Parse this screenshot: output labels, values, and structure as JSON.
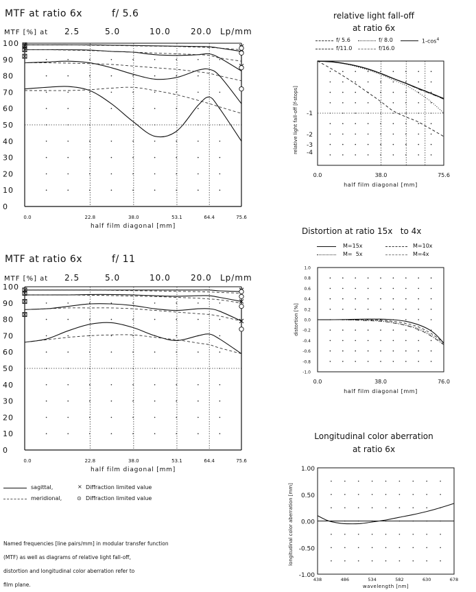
{
  "mtf1": {
    "title": "MTF at ratio 6x",
    "aperture": "f/ 5.6",
    "freq_label": "MTF [%] at",
    "freqs": [
      "2.5",
      "5.0",
      "10.0",
      "20.0"
    ],
    "freq_unit": "Lp/mm",
    "xlabel": "half film diagonal [mm]"
  },
  "mtf2": {
    "title": "MTF at ratio 6x",
    "aperture": "f/ 11",
    "freq_label": "MTF [%] at",
    "freqs": [
      "2.5",
      "5.0",
      "10.0",
      "20.0"
    ],
    "freq_unit": "Lp/mm",
    "xlabel": "half film diagonal [mm]"
  },
  "legend": {
    "sagittal": "sagittal,",
    "meridional": "meridional,",
    "diff_x": "Diffraction limited value",
    "diff_o": "Diffraction limited value"
  },
  "note": [
    "Named frequencies [line pairs/mm] in modular transfer function",
    "(MTF) as well as diagrams of relative light fall-off,",
    "distortion and longitudinal color aberration refer to",
    "film plane."
  ],
  "falloff": {
    "title_line1": "relative light fall-off",
    "title_line2": "at ratio 6x",
    "legend": [
      "f/ 5.6",
      "f/ 8.0",
      "1-cos",
      "f/11.0",
      "f/16.0"
    ],
    "cos_exp": "4",
    "ylabel": "relative light fall-off [f-stops]",
    "xlabel": "half film diagonal [mm]"
  },
  "distortion": {
    "title": "Distortion at ratio 15x   to 4x",
    "legend": [
      "M=15x",
      "M=10x",
      "M=  5x",
      "M=4x"
    ],
    "ylabel": "distortion [%]",
    "xlabel": "half film diagonal [mm]"
  },
  "lca": {
    "title_line1": "Longitudinal color aberration",
    "title_line2": "at ratio 6x",
    "ylabel": "longitudinal color aberration [mm]",
    "xlabel": "wavelength [nm]"
  },
  "chart_data": [
    {
      "type": "line",
      "title": "MTF at ratio 6x f/5.6",
      "xlabel": "half film diagonal [mm]",
      "ylabel": "MTF [%]",
      "x_ticks": [
        "0.0",
        "22.8",
        "38.0",
        "53.1",
        "64.4",
        "75.6"
      ],
      "x_tick_values": [
        0,
        22.8,
        38.0,
        53.1,
        64.4,
        75.6
      ],
      "y_ticks": [
        "0",
        "10",
        "20",
        "30",
        "40",
        "50",
        "60",
        "70",
        "80",
        "90",
        "100"
      ],
      "xlim": [
        0,
        75.6
      ],
      "ylim": [
        0,
        100
      ],
      "x": [
        0,
        7.6,
        15.1,
        22.7,
        30.2,
        37.8,
        45.4,
        52.9,
        60.5,
        64.4,
        68.0,
        75.6
      ],
      "series": [
        {
          "name": "2.5 Lp/mm sagittal",
          "style": "solid",
          "values": [
            99,
            99,
            99,
            99,
            98.8,
            98.6,
            98.4,
            98.2,
            98,
            97.8,
            97,
            95
          ]
        },
        {
          "name": "2.5 Lp/mm meridional",
          "style": "dashed",
          "values": [
            99,
            99,
            99,
            98.8,
            98.6,
            98.4,
            98.2,
            98,
            97.6,
            97.4,
            97,
            96
          ]
        },
        {
          "name": "5.0 Lp/mm sagittal",
          "style": "solid",
          "values": [
            96,
            96,
            96,
            95.8,
            95,
            94.5,
            93,
            92.5,
            93,
            93.5,
            91,
            83
          ]
        },
        {
          "name": "5.0 Lp/mm meridional",
          "style": "dashed",
          "values": [
            96,
            96,
            95.8,
            95.5,
            95,
            94.5,
            94,
            93.5,
            93,
            92.5,
            91,
            89
          ]
        },
        {
          "name": "10.0 Lp/mm sagittal",
          "style": "solid",
          "values": [
            88,
            88.5,
            89,
            88,
            85,
            81,
            78,
            79,
            83.5,
            84,
            80,
            63
          ]
        },
        {
          "name": "10.0 Lp/mm meridional",
          "style": "dashed",
          "values": [
            88,
            88,
            87.8,
            87.5,
            87,
            86,
            85,
            84,
            82.5,
            81.5,
            80,
            77
          ]
        },
        {
          "name": "20.0 Lp/mm sagittal",
          "style": "solid",
          "values": [
            72,
            73,
            73.5,
            71,
            63,
            52,
            43,
            46,
            62,
            67,
            60,
            40
          ]
        },
        {
          "name": "20.0 Lp/mm meridional",
          "style": "dashed",
          "values": [
            71,
            71,
            71,
            71.5,
            72.5,
            73,
            71,
            68.5,
            65,
            63,
            61,
            57
          ]
        }
      ],
      "diffraction_limited_center": [
        99,
        98,
        96,
        92
      ],
      "diffraction_limited_edge_x": [
        98,
        96,
        86
      ],
      "diffraction_limited_edge_o": [
        97,
        94,
        85,
        72
      ]
    },
    {
      "type": "line",
      "title": "MTF at ratio 6x f/11",
      "xlabel": "half film diagonal [mm]",
      "ylabel": "MTF [%]",
      "x_ticks": [
        "0.0",
        "22.8",
        "38.0",
        "53.1",
        "64.4",
        "75.6"
      ],
      "x_tick_values": [
        0,
        22.8,
        38.0,
        53.1,
        64.4,
        75.6
      ],
      "y_ticks": [
        "0",
        "10",
        "20",
        "30",
        "40",
        "50",
        "60",
        "70",
        "80",
        "90",
        "100"
      ],
      "xlim": [
        0,
        75.6
      ],
      "ylim": [
        0,
        100
      ],
      "x": [
        0,
        7.6,
        15.1,
        22.7,
        30.2,
        37.8,
        45.4,
        52.9,
        60.5,
        64.4,
        68.0,
        75.6
      ],
      "series": [
        {
          "name": "2.5 Lp/mm sagittal",
          "style": "solid",
          "values": [
            98,
            98,
            98,
            98,
            98,
            98,
            98,
            98,
            98,
            98,
            97.5,
            97
          ]
        },
        {
          "name": "2.5 Lp/mm meridional",
          "style": "dashed",
          "values": [
            98,
            98,
            98,
            98,
            97.8,
            97.6,
            97.4,
            97.2,
            97,
            96.8,
            96.5,
            96
          ]
        },
        {
          "name": "5.0 Lp/mm sagittal",
          "style": "solid",
          "values": [
            95,
            95,
            95,
            95.2,
            95.2,
            95,
            94.5,
            94.2,
            94.5,
            94.5,
            93.5,
            91
          ]
        },
        {
          "name": "5.0 Lp/mm meridional",
          "style": "dashed",
          "values": [
            95,
            95,
            95,
            94.8,
            94.6,
            94.3,
            94,
            93.5,
            93,
            92.5,
            92,
            90
          ]
        },
        {
          "name": "10.0 Lp/mm sagittal",
          "style": "solid",
          "values": [
            86,
            86.5,
            88,
            89.5,
            89.5,
            88.5,
            86.5,
            85.5,
            86.5,
            86.5,
            85,
            79
          ]
        },
        {
          "name": "10.0 Lp/mm meridional",
          "style": "dashed",
          "values": [
            86,
            86.5,
            87,
            87,
            87,
            86.5,
            85.5,
            84.5,
            83.5,
            83,
            82,
            79
          ]
        },
        {
          "name": "20.0 Lp/mm sagittal",
          "style": "solid",
          "values": [
            66,
            68,
            73,
            77,
            78,
            75,
            70,
            67,
            70,
            71,
            68,
            59
          ]
        },
        {
          "name": "20.0 Lp/mm meridional",
          "style": "dashed",
          "values": [
            66,
            67.5,
            69,
            70,
            70.5,
            70.5,
            69,
            67.5,
            65.5,
            64.5,
            62.5,
            59
          ]
        }
      ],
      "diffraction_limited_center": [
        98,
        96,
        91,
        83
      ],
      "diffraction_limited_edge_x": [
        98,
        91,
        79
      ],
      "diffraction_limited_edge_o": [
        97,
        94,
        88,
        74
      ]
    },
    {
      "type": "line",
      "title": "relative light fall-off at ratio 6x",
      "xlabel": "half film diagonal [mm]",
      "ylabel": "relative light fall-off [f-stops]",
      "x_ticks": [
        "0.0",
        "38.0",
        "75.6"
      ],
      "x_tick_values": [
        0,
        38.0,
        75.6
      ],
      "y_ticks": [
        "-1",
        "-2",
        "-3",
        "-4"
      ],
      "y_tick_values": [
        -1,
        -2,
        -3,
        -4
      ],
      "xlim": [
        0,
        75.6
      ],
      "x": [
        0,
        10,
        20,
        30,
        38,
        45,
        53.1,
        60,
        68,
        75.6
      ],
      "series": [
        {
          "name": "f/ 5.6",
          "style": "dashed",
          "values": [
            0,
            -0.18,
            -0.38,
            -0.6,
            -0.78,
            -0.95,
            -1.18,
            -1.4,
            -1.75,
            -2.2
          ]
        },
        {
          "name": "f/ 8.0",
          "style": "dotted",
          "values": [
            0,
            -0.02,
            -0.08,
            -0.17,
            -0.26,
            -0.36,
            -0.47,
            -0.6,
            -0.78,
            -1.0
          ]
        },
        {
          "name": "1-cos4",
          "style": "solid",
          "values": [
            0,
            -0.02,
            -0.07,
            -0.15,
            -0.24,
            -0.33,
            -0.43,
            -0.52,
            -0.62,
            -0.72
          ]
        },
        {
          "name": "f/11.0",
          "style": "dashdot",
          "values": [
            0,
            -0.02,
            -0.07,
            -0.15,
            -0.24,
            -0.33,
            -0.43,
            -0.53,
            -0.63,
            -0.73
          ]
        },
        {
          "name": "f/16.0",
          "style": "dashdot2",
          "values": [
            0,
            -0.02,
            -0.07,
            -0.15,
            -0.24,
            -0.33,
            -0.43,
            -0.52,
            -0.62,
            -0.72
          ]
        }
      ]
    },
    {
      "type": "line",
      "title": "Distortion at ratio 15x to 4x",
      "xlabel": "half film diagonal [mm]",
      "ylabel": "distortion [%]",
      "x_ticks": [
        "0.0",
        "38.0",
        "76.0"
      ],
      "x_tick_values": [
        0,
        38.0,
        76.0
      ],
      "y_ticks": [
        "1.0",
        "0.8",
        "0.6",
        "0.4",
        "0.2",
        "0.0",
        "-0.2",
        "-0.4",
        "-0.6",
        "-0.8",
        "-1.0"
      ],
      "xlim": [
        0,
        76
      ],
      "ylim": [
        -1,
        1
      ],
      "x": [
        0,
        10,
        20,
        30,
        38,
        45,
        53,
        60,
        66,
        71,
        76
      ],
      "series": [
        {
          "name": "M=15x",
          "style": "solid",
          "values": [
            0,
            0,
            0.005,
            0.01,
            0.01,
            0,
            -0.03,
            -0.09,
            -0.17,
            -0.28,
            -0.45
          ]
        },
        {
          "name": "M=10x",
          "style": "dashed",
          "values": [
            0,
            0,
            0,
            0,
            -0.01,
            -0.03,
            -0.07,
            -0.13,
            -0.22,
            -0.32,
            -0.45
          ]
        },
        {
          "name": "M=  5x",
          "style": "dotted",
          "values": [
            0,
            0,
            -0.005,
            -0.01,
            -0.02,
            -0.05,
            -0.1,
            -0.16,
            -0.25,
            -0.35,
            -0.47
          ]
        },
        {
          "name": "M=4x",
          "style": "dashdot",
          "values": [
            0,
            0,
            -0.005,
            -0.02,
            -0.03,
            -0.06,
            -0.11,
            -0.18,
            -0.27,
            -0.37,
            -0.48
          ]
        }
      ]
    },
    {
      "type": "line",
      "title": "Longitudinal color aberration at ratio 6x",
      "xlabel": "wavelength [nm]",
      "ylabel": "longitudinal color aberration [mm]",
      "x_ticks": [
        "438",
        "486",
        "534",
        "582",
        "630",
        "678"
      ],
      "x_tick_values": [
        438,
        486,
        534,
        582,
        630,
        678
      ],
      "y_ticks": [
        "1.00",
        "0.50",
        "0.00",
        "-0.50",
        "-1.00"
      ],
      "y_tick_values": [
        1,
        0.5,
        0,
        -0.5,
        -1
      ],
      "xlim": [
        438,
        678
      ],
      "ylim": [
        -1,
        1
      ],
      "x": [
        438,
        455,
        470,
        486,
        510,
        534,
        558,
        582,
        606,
        630,
        654,
        678
      ],
      "series": [
        {
          "name": "longitudinal color aberration",
          "style": "solid",
          "values": [
            0.1,
            0.01,
            -0.03,
            -0.05,
            -0.05,
            -0.02,
            0.02,
            0.07,
            0.12,
            0.18,
            0.25,
            0.33
          ]
        }
      ]
    }
  ]
}
